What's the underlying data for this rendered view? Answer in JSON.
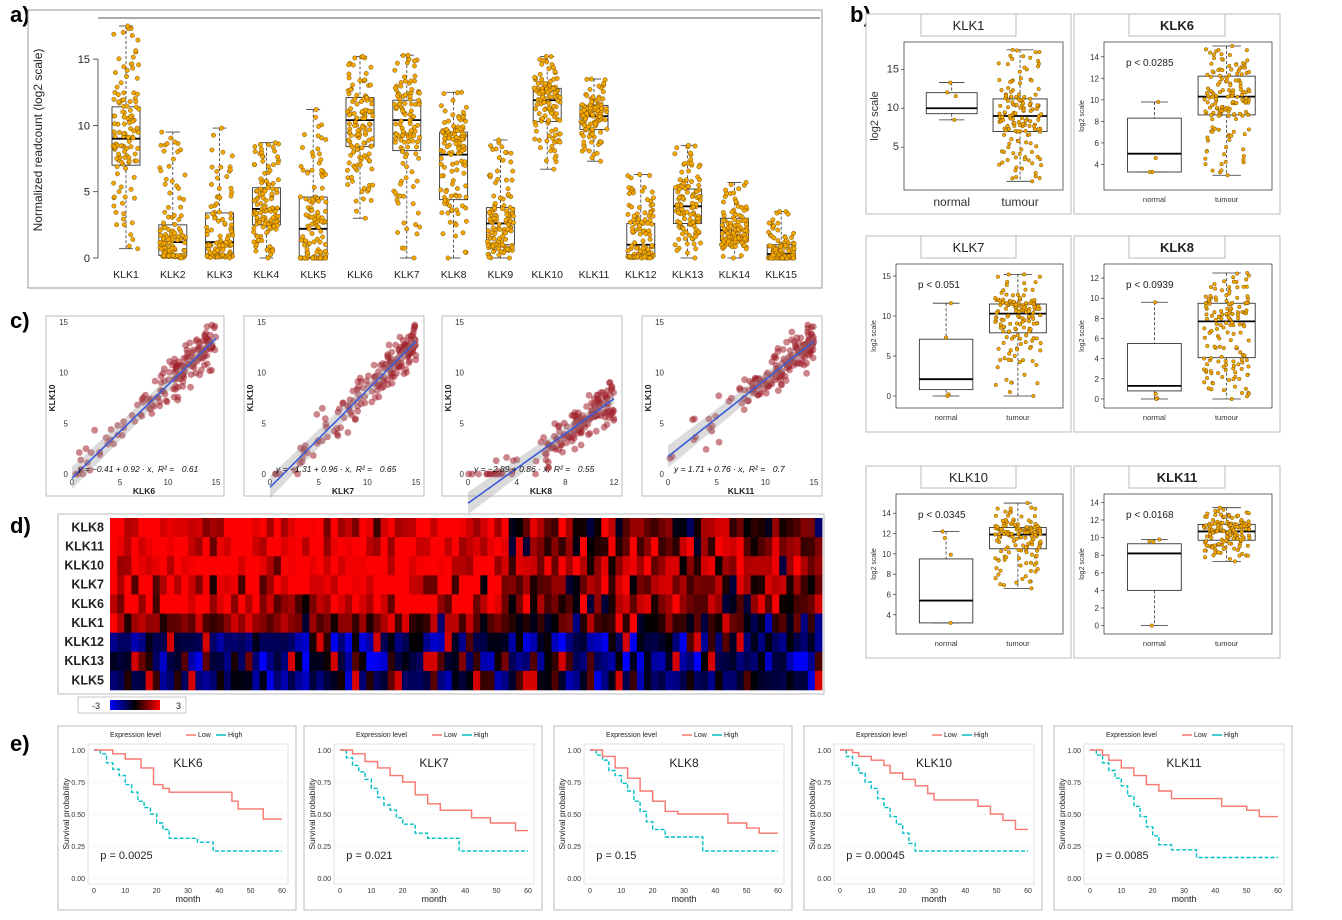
{
  "panel_labels": [
    "a)",
    "b)",
    "c)",
    "d)",
    "e)"
  ],
  "chart_data": [
    {
      "id": "a",
      "type": "box",
      "ylabel": "Normalized readcount (log2 scale)",
      "ylim": [
        0,
        17.5
      ],
      "yticks": [
        0,
        5,
        10,
        15
      ],
      "categories": [
        "KLK1",
        "KLK2",
        "KLK3",
        "KLK4",
        "KLK5",
        "KLK6",
        "KLK7",
        "KLK8",
        "KLK9",
        "KLK10",
        "KLK11",
        "KLK12",
        "KLK13",
        "KLK14",
        "KLK15"
      ],
      "boxes": [
        {
          "min": 0.7,
          "q1": 7.0,
          "median": 9.0,
          "q3": 11.4,
          "max": 17.5
        },
        {
          "min": 0,
          "q1": 0.2,
          "median": 1.2,
          "q3": 2.5,
          "max": 9.5
        },
        {
          "min": 0,
          "q1": 0.2,
          "median": 1.2,
          "q3": 3.4,
          "max": 9.8
        },
        {
          "min": 0,
          "q1": 2.5,
          "median": 3.7,
          "q3": 5.3,
          "max": 8.7
        },
        {
          "min": 0,
          "q1": 0,
          "median": 2.2,
          "q3": 4.6,
          "max": 11.2
        },
        {
          "min": 3.0,
          "q1": 8.4,
          "median": 10.4,
          "q3": 12.1,
          "max": 15.2
        },
        {
          "min": 0,
          "q1": 8.1,
          "median": 10.4,
          "q3": 11.9,
          "max": 15.3
        },
        {
          "min": 0,
          "q1": 4.4,
          "median": 7.8,
          "q3": 9.5,
          "max": 12.5
        },
        {
          "min": 0,
          "q1": 1.0,
          "median": 2.6,
          "q3": 3.8,
          "max": 8.9
        },
        {
          "min": 6.7,
          "q1": 10.3,
          "median": 11.9,
          "q3": 12.8,
          "max": 15.2
        },
        {
          "min": 7.3,
          "q1": 9.7,
          "median": 10.7,
          "q3": 11.5,
          "max": 13.5
        },
        {
          "min": 0,
          "q1": 0.1,
          "median": 1.0,
          "q3": 2.6,
          "max": 6.3
        },
        {
          "min": 0,
          "q1": 2.6,
          "median": 3.9,
          "q3": 5.2,
          "max": 8.5
        },
        {
          "min": 0,
          "q1": 1.3,
          "median": 2.1,
          "q3": 3.0,
          "max": 5.7
        },
        {
          "min": 0,
          "q1": 0,
          "median": 0.3,
          "q3": 1.0,
          "max": 3.5
        }
      ],
      "point_color": "#F5A800"
    },
    {
      "id": "b",
      "type": "box",
      "groups": [
        "normal",
        "tumour"
      ],
      "ylabel": "log2 scale",
      "plots": [
        {
          "title": "KLK1",
          "p_label": "",
          "ylim": [
            0,
            18
          ],
          "yticks": [
            5,
            10,
            15
          ],
          "normal": {
            "min": 8.5,
            "q1": 9.3,
            "median": 10.0,
            "q3": 12.0,
            "max": 13.3
          },
          "tumour": {
            "min": 0.6,
            "q1": 7.0,
            "median": 9.0,
            "q3": 11.2,
            "max": 17.5
          }
        },
        {
          "title": "KLK6",
          "p_label": "p < 0.0285",
          "ylim": [
            2,
            15
          ],
          "yticks": [
            4,
            6,
            8,
            10,
            12,
            14
          ],
          "normal": {
            "min": 3.3,
            "q1": 3.3,
            "median": 5.0,
            "q3": 8.3,
            "max": 9.8
          },
          "tumour": {
            "min": 3.0,
            "q1": 8.6,
            "median": 10.3,
            "q3": 12.2,
            "max": 15.0
          }
        },
        {
          "title": "KLK7",
          "p_label": "p < 0.051",
          "ylim": [
            -1,
            16
          ],
          "yticks": [
            0,
            5,
            10,
            15
          ],
          "normal": {
            "min": 0,
            "q1": 0.8,
            "median": 2.1,
            "q3": 7.1,
            "max": 11.6
          },
          "tumour": {
            "min": 0,
            "q1": 7.9,
            "median": 10.3,
            "q3": 11.5,
            "max": 15.2
          }
        },
        {
          "title": "KLK8",
          "p_label": "p < 0.0939",
          "ylim": [
            -0.5,
            13
          ],
          "yticks": [
            0,
            2,
            4,
            6,
            8,
            10,
            12
          ],
          "normal": {
            "min": 0,
            "q1": 0.8,
            "median": 1.3,
            "q3": 5.5,
            "max": 9.6
          },
          "tumour": {
            "min": 0,
            "q1": 4.1,
            "median": 7.7,
            "q3": 9.5,
            "max": 12.5
          }
        },
        {
          "title": "KLK10",
          "p_label": "p < 0.0345",
          "ylim": [
            2.5,
            15.5
          ],
          "yticks": [
            4,
            6,
            8,
            10,
            12,
            14
          ],
          "normal": {
            "min": 3.2,
            "q1": 3.2,
            "median": 5.4,
            "q3": 9.5,
            "max": 12.2
          },
          "tumour": {
            "min": 6.6,
            "q1": 10.5,
            "median": 11.9,
            "q3": 12.6,
            "max": 15.0
          }
        },
        {
          "title": "KLK11",
          "p_label": "p < 0.0168",
          "ylim": [
            -0.5,
            14.5
          ],
          "yticks": [
            0,
            2,
            4,
            6,
            8,
            10,
            12,
            14
          ],
          "normal": {
            "min": 0,
            "q1": 4.0,
            "median": 8.2,
            "q3": 9.3,
            "max": 9.8
          },
          "tumour": {
            "min": 7.3,
            "q1": 9.7,
            "median": 10.7,
            "q3": 11.5,
            "max": 13.4
          }
        }
      ]
    },
    {
      "id": "c",
      "type": "scatter",
      "ylabel": "KLK10",
      "plots": [
        {
          "xlabel": "KLK6",
          "xlim": [
            0,
            15
          ],
          "xticks": [
            0,
            5,
            10,
            15
          ],
          "ylim": [
            0,
            15
          ],
          "yticks": [
            0,
            5,
            10,
            15
          ],
          "intercept": -0.41,
          "slope": 0.92,
          "eq_text": "y = −0.41 + 0.92 · x,",
          "r2": "0.61"
        },
        {
          "xlabel": "KLK7",
          "xlim": [
            0,
            15
          ],
          "xticks": [
            0,
            5,
            10,
            15
          ],
          "ylim": [
            0,
            15
          ],
          "yticks": [
            0,
            5,
            10,
            15
          ],
          "intercept": -1.31,
          "slope": 0.96,
          "eq_text": "y = −1.31 + 0.96 · x,",
          "r2": "0.65"
        },
        {
          "xlabel": "KLK8",
          "xlim": [
            0,
            12
          ],
          "xticks": [
            0,
            4,
            8,
            12
          ],
          "ylim": [
            0,
            15
          ],
          "yticks": [
            0,
            5,
            10,
            15
          ],
          "intercept": -2.89,
          "slope": 0.86,
          "eq_text": "y = −2.89 + 0.86 · x,",
          "r2": "0.55"
        },
        {
          "xlabel": "KLK11",
          "xlim": [
            0,
            15
          ],
          "xticks": [
            0,
            5,
            10,
            15
          ],
          "ylim": [
            0,
            15
          ],
          "yticks": [
            0,
            5,
            10,
            15
          ],
          "intercept": 1.71,
          "slope": 0.76,
          "eq_text": "y = 1.71 + 0.76 · x,",
          "r2": "0.7"
        }
      ],
      "point_color": "#A0202C",
      "line_color": "#3B5BD9"
    },
    {
      "id": "d",
      "type": "heatmap",
      "rows": [
        "KLK8",
        "KLK11",
        "KLK10",
        "KLK7",
        "KLK6",
        "KLK1",
        "KLK12",
        "KLK13",
        "KLK5"
      ],
      "n_columns": 100,
      "scale_min": "-3",
      "scale_max": "3",
      "colors": {
        "low": "#0000FF",
        "mid": "#000000",
        "high": "#FF0000"
      }
    },
    {
      "id": "e",
      "type": "line",
      "legend_title": "Expression level",
      "legend": [
        "Low",
        "High"
      ],
      "series_colors": {
        "Low": "#F8766D",
        "High": "#00BFC4"
      },
      "ylabel": "Survival probability",
      "xlabel": "month",
      "xlim": [
        0,
        60
      ],
      "xticks": [
        0,
        10,
        20,
        30,
        40,
        50,
        60
      ],
      "ylim": [
        0,
        1
      ],
      "yticks": [
        "0.00",
        "0.25",
        "0.50",
        "0.75",
        "1.00"
      ],
      "plots": [
        {
          "title": "KLK6",
          "p_label": "p = 0.0025",
          "low": [
            [
              0,
              1
            ],
            [
              4,
              1
            ],
            [
              6,
              0.97
            ],
            [
              10,
              0.93
            ],
            [
              15,
              0.86
            ],
            [
              19,
              0.73
            ],
            [
              22,
              0.7
            ],
            [
              24,
              0.67
            ],
            [
              33,
              0.67
            ],
            [
              38,
              0.67
            ],
            [
              44,
              0.6
            ],
            [
              46,
              0.54
            ],
            [
              50,
              0.54
            ],
            [
              54,
              0.46
            ],
            [
              60,
              0.46
            ]
          ],
          "high": [
            [
              0,
              1
            ],
            [
              2,
              0.97
            ],
            [
              4,
              0.9
            ],
            [
              6,
              0.85
            ],
            [
              8,
              0.8
            ],
            [
              10,
              0.73
            ],
            [
              12,
              0.67
            ],
            [
              14,
              0.6
            ],
            [
              16,
              0.55
            ],
            [
              18,
              0.5
            ],
            [
              20,
              0.43
            ],
            [
              22,
              0.38
            ],
            [
              24,
              0.31
            ],
            [
              32,
              0.31
            ],
            [
              33,
              0.28
            ],
            [
              38,
              0.21
            ],
            [
              60,
              0.21
            ]
          ]
        },
        {
          "title": "KLK7",
          "p_label": "p = 0.021",
          "low": [
            [
              0,
              1
            ],
            [
              4,
              0.97
            ],
            [
              8,
              0.91
            ],
            [
              12,
              0.86
            ],
            [
              16,
              0.8
            ],
            [
              20,
              0.75
            ],
            [
              24,
              0.65
            ],
            [
              28,
              0.58
            ],
            [
              32,
              0.53
            ],
            [
              38,
              0.53
            ],
            [
              42,
              0.47
            ],
            [
              48,
              0.43
            ],
            [
              56,
              0.37
            ],
            [
              60,
              0.37
            ]
          ],
          "high": [
            [
              0,
              1
            ],
            [
              2,
              0.94
            ],
            [
              4,
              0.88
            ],
            [
              6,
              0.83
            ],
            [
              8,
              0.77
            ],
            [
              10,
              0.7
            ],
            [
              12,
              0.63
            ],
            [
              14,
              0.57
            ],
            [
              16,
              0.53
            ],
            [
              18,
              0.47
            ],
            [
              20,
              0.42
            ],
            [
              24,
              0.35
            ],
            [
              28,
              0.31
            ],
            [
              36,
              0.31
            ],
            [
              38,
              0.21
            ],
            [
              60,
              0.21
            ]
          ]
        },
        {
          "title": "KLK8",
          "p_label": "p = 0.15",
          "low": [
            [
              0,
              1
            ],
            [
              4,
              0.95
            ],
            [
              8,
              0.86
            ],
            [
              12,
              0.78
            ],
            [
              16,
              0.68
            ],
            [
              20,
              0.6
            ],
            [
              24,
              0.52
            ],
            [
              28,
              0.5
            ],
            [
              38,
              0.5
            ],
            [
              44,
              0.43
            ],
            [
              50,
              0.39
            ],
            [
              54,
              0.35
            ],
            [
              60,
              0.35
            ]
          ],
          "high": [
            [
              0,
              1
            ],
            [
              2,
              0.96
            ],
            [
              4,
              0.92
            ],
            [
              6,
              0.84
            ],
            [
              8,
              0.8
            ],
            [
              10,
              0.74
            ],
            [
              12,
              0.68
            ],
            [
              14,
              0.6
            ],
            [
              16,
              0.52
            ],
            [
              18,
              0.44
            ],
            [
              20,
              0.38
            ],
            [
              24,
              0.32
            ],
            [
              34,
              0.32
            ],
            [
              36,
              0.21
            ],
            [
              60,
              0.21
            ]
          ]
        },
        {
          "title": "KLK10",
          "p_label": "p = 0.00045",
          "low": [
            [
              0,
              1
            ],
            [
              4,
              0.98
            ],
            [
              6,
              0.95
            ],
            [
              10,
              0.92
            ],
            [
              14,
              0.88
            ],
            [
              16,
              0.82
            ],
            [
              20,
              0.77
            ],
            [
              24,
              0.72
            ],
            [
              28,
              0.66
            ],
            [
              30,
              0.61
            ],
            [
              40,
              0.61
            ],
            [
              44,
              0.56
            ],
            [
              48,
              0.5
            ],
            [
              52,
              0.45
            ],
            [
              56,
              0.38
            ],
            [
              60,
              0.38
            ]
          ],
          "high": [
            [
              0,
              1
            ],
            [
              2,
              0.95
            ],
            [
              4,
              0.88
            ],
            [
              6,
              0.82
            ],
            [
              8,
              0.75
            ],
            [
              10,
              0.7
            ],
            [
              12,
              0.62
            ],
            [
              14,
              0.55
            ],
            [
              16,
              0.48
            ],
            [
              18,
              0.42
            ],
            [
              20,
              0.35
            ],
            [
              22,
              0.27
            ],
            [
              24,
              0.21
            ],
            [
              60,
              0.21
            ]
          ]
        },
        {
          "title": "KLK11",
          "p_label": "p = 0.0085",
          "low": [
            [
              0,
              1
            ],
            [
              4,
              0.96
            ],
            [
              6,
              0.92
            ],
            [
              10,
              0.86
            ],
            [
              14,
              0.8
            ],
            [
              18,
              0.73
            ],
            [
              22,
              0.68
            ],
            [
              26,
              0.62
            ],
            [
              38,
              0.62
            ],
            [
              42,
              0.56
            ],
            [
              50,
              0.53
            ],
            [
              54,
              0.48
            ],
            [
              60,
              0.48
            ]
          ],
          "high": [
            [
              0,
              1
            ],
            [
              2,
              0.96
            ],
            [
              4,
              0.9
            ],
            [
              6,
              0.84
            ],
            [
              8,
              0.78
            ],
            [
              10,
              0.72
            ],
            [
              12,
              0.64
            ],
            [
              14,
              0.56
            ],
            [
              16,
              0.48
            ],
            [
              18,
              0.4
            ],
            [
              20,
              0.33
            ],
            [
              22,
              0.26
            ],
            [
              26,
              0.22
            ],
            [
              32,
              0.22
            ],
            [
              34,
              0.16
            ],
            [
              60,
              0.16
            ]
          ]
        }
      ]
    }
  ]
}
